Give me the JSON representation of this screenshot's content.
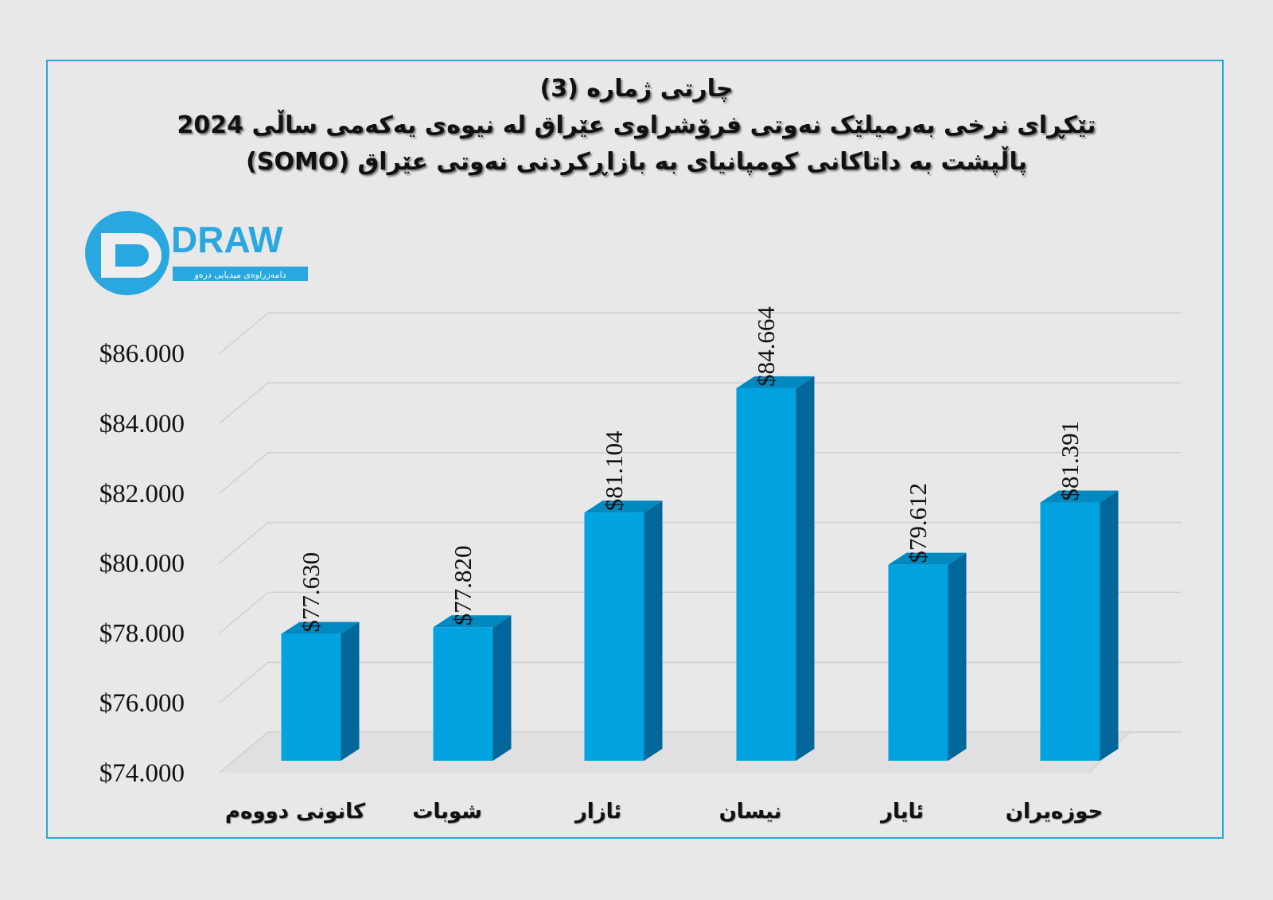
{
  "title_lines": [
    "چارتی ژمارە (3)",
    "تێکڕای نرخی بەرمیلێک نەوتی فرۆشراوی عێراق لە نیوەی یەکەمی ساڵی 2024",
    "پاڵپشت بە داتاکانی کومپانیای بە بازاڕکردنی نەوتی عێراق (SOMO)"
  ],
  "logo": {
    "text": "DRAW",
    "subtitle": "دامەزراوەی میدیایی درەو"
  },
  "colors": {
    "bar_front": "#00a3e0",
    "bar_side": "#00679a",
    "bar_top": "#0088c0",
    "frame": "#2aa6d6"
  },
  "chart_data": {
    "type": "bar",
    "title": "تێکڕای نرخی بەرمیلێک نەوتی فرۆشراوی عێراق لە نیوەی یەکەمی ساڵی 2024",
    "categories": [
      "کانونی دووەم",
      "شوبات",
      "ئازار",
      "نیسان",
      "ئایار",
      "حوزەیران"
    ],
    "values": [
      77.63,
      77.82,
      81.104,
      84.664,
      79.612,
      81.391
    ],
    "data_labels": [
      "$77.630",
      "$77.820",
      "$81.104",
      "$84.664",
      "$79.612",
      "$81.391"
    ],
    "yticks": [
      "$74.000",
      "$76.000",
      "$78.000",
      "$80.000",
      "$82.000",
      "$84.000",
      "$86.000"
    ],
    "ytick_values": [
      74,
      76,
      78,
      80,
      82,
      84,
      86
    ],
    "ylim": [
      74,
      87
    ],
    "xlabel": "",
    "ylabel": "",
    "grid": true,
    "legend": "none"
  }
}
